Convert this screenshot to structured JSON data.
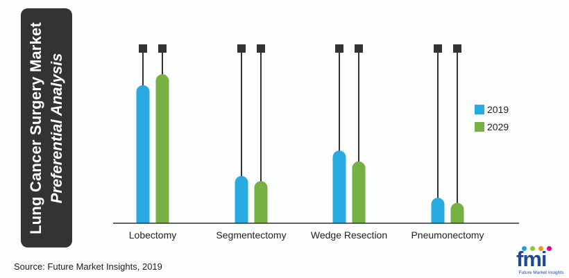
{
  "title": {
    "line1": "Lung Cancer Surgery Market",
    "line2": "Preferential Analysis"
  },
  "source": "Source: Future Market Insights, 2019",
  "logo": {
    "text": "fmi",
    "subtext": "Future Market Insights",
    "dot_colors": [
      "#2e9bd6",
      "#8cc63f",
      "#f7941d",
      "#e4007c"
    ]
  },
  "chart_data": {
    "type": "bar",
    "categories": [
      "Lobectomy",
      "Segmentectomy",
      "Wedge Resection",
      "Pneumonectomy"
    ],
    "series": [
      {
        "name": "2019",
        "color": "#29abe2",
        "values": [
          190,
          65,
          100,
          35
        ]
      },
      {
        "name": "2029",
        "color": "#77b043",
        "values": [
          205,
          58,
          85,
          28
        ]
      }
    ],
    "ylim": [
      0,
      250
    ],
    "legend_position": "right",
    "grid": false,
    "y_axis_visible": false
  }
}
